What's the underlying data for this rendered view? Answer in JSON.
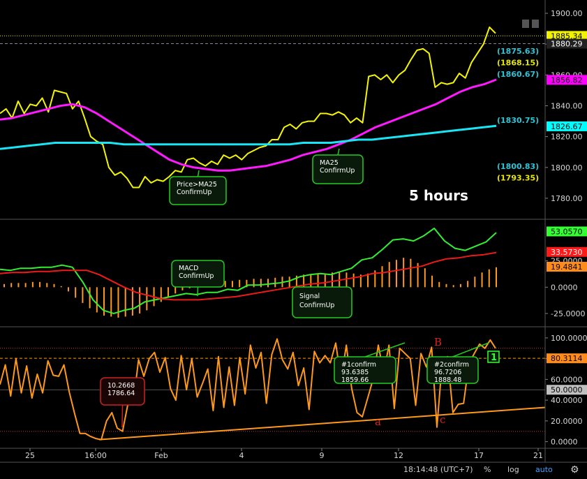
{
  "chart_data": [
    {
      "panel": "price",
      "type": "line",
      "annotation_label": "5 hours",
      "ylim": [
        1770,
        1905
      ],
      "y_ticks": [
        "1900.00",
        "1880.00",
        "1860.00",
        "1840.00",
        "1820.00",
        "1800.00",
        "1780.00"
      ],
      "price_tags": [
        {
          "text": "1885.34",
          "value": 1885.34,
          "bg": "#f2f200",
          "fg": "#000000"
        },
        {
          "text": "1880.29",
          "value": 1880.29,
          "bg": "#222222",
          "fg": "#ffffff"
        },
        {
          "text": "1856.82",
          "value": 1856.82,
          "bg": "#ff00ff",
          "fg": "#000000"
        },
        {
          "text": "1826.67",
          "value": 1826.67,
          "bg": "#00ffff",
          "fg": "#000000"
        }
      ],
      "level_labels": [
        {
          "text": "(1875.63)",
          "value": 1875.63,
          "color": "#2ec4d6"
        },
        {
          "text": "(1868.15)",
          "value": 1868.15,
          "color": "#e8e800"
        },
        {
          "text": "(1860.67)",
          "value": 1860.67,
          "color": "#2ec4d6"
        },
        {
          "text": "(1830.75)",
          "value": 1830.75,
          "color": "#2ec4d6"
        },
        {
          "text": "(1800.83)",
          "value": 1800.83,
          "color": "#2ec4d6"
        },
        {
          "text": "(1793.35)",
          "value": 1793.35,
          "color": "#e8e800"
        }
      ],
      "hlines": [
        {
          "value": 1885.34,
          "color": "#e8e800",
          "style": "dotted"
        },
        {
          "value": 1880.29,
          "color": "#888888",
          "style": "dashed"
        }
      ],
      "series": [
        {
          "color": "#f5f500",
          "values": [
            1835,
            1838,
            1832,
            1843,
            1835,
            1841,
            1840,
            1845,
            1836,
            1850,
            1849,
            1848,
            1838,
            1843,
            1832,
            1820,
            1817,
            1815,
            1800,
            1795,
            1797,
            1793,
            1787,
            1787,
            1794,
            1790,
            1792,
            1791,
            1794,
            1798,
            1797,
            1805,
            1806,
            1803,
            1801,
            1804,
            1802,
            1808,
            1806,
            1808,
            1805,
            1809,
            1811,
            1813,
            1814,
            1818,
            1818,
            1826,
            1828,
            1825,
            1829,
            1830,
            1830,
            1835,
            1835,
            1834,
            1836,
            1834,
            1829,
            1832,
            1829,
            1859,
            1860,
            1857,
            1860,
            1855,
            1860,
            1863,
            1870,
            1876,
            1877,
            1874,
            1852,
            1855,
            1854,
            1855,
            1861,
            1858,
            1868,
            1874,
            1880,
            1891,
            1887
          ]
        },
        {
          "color": "#ff19ff",
          "values": [
            1831,
            1832,
            1834,
            1836,
            1838,
            1840,
            1841,
            1839,
            1835,
            1830,
            1825,
            1820,
            1815,
            1810,
            1805,
            1802,
            1800,
            1799,
            1798,
            1798,
            1799,
            1800,
            1801,
            1803,
            1805,
            1808,
            1810,
            1812,
            1815,
            1818,
            1822,
            1826,
            1829,
            1832,
            1835,
            1838,
            1841,
            1845,
            1849,
            1852,
            1854,
            1857
          ]
        },
        {
          "color": "#19e6f5",
          "values": [
            1812,
            1813,
            1814,
            1815,
            1816,
            1816,
            1816,
            1816,
            1816,
            1815,
            1815,
            1815,
            1815,
            1815,
            1815,
            1815,
            1815,
            1815,
            1815,
            1815,
            1815,
            1815,
            1816,
            1816,
            1816,
            1817,
            1818,
            1818,
            1819,
            1820,
            1821,
            1822,
            1823,
            1824,
            1825,
            1826,
            1827
          ]
        }
      ],
      "callouts": [
        {
          "lines": [
            "Price>MA25",
            "ConfirmUp"
          ]
        },
        {
          "lines": [
            "MA25",
            "ConfirmUp"
          ]
        }
      ]
    },
    {
      "panel": "macd",
      "type": "line",
      "ylim": [
        -35,
        62
      ],
      "y_ticks": [
        "25.0000",
        "0.0000",
        "-25.0000"
      ],
      "price_tags": [
        {
          "text": "53.0570",
          "value": 53.057,
          "bg": "#33ff33",
          "fg": "#000000"
        },
        {
          "text": "33.5730",
          "value": 33.573,
          "bg": "#ff1a1a",
          "fg": "#ffffff"
        },
        {
          "text": "19.4841",
          "value": 19.4841,
          "bg": "#ff8c1a",
          "fg": "#000000"
        }
      ],
      "histogram": [
        3,
        4,
        4,
        4,
        5,
        5,
        4,
        3,
        1,
        -4,
        -10,
        -15,
        -20,
        -24,
        -27,
        -28,
        -29,
        -28,
        -27,
        -25,
        -22,
        -18,
        -14,
        -10,
        -6,
        -3,
        -1,
        1,
        4,
        5,
        6,
        6,
        6,
        7,
        7,
        8,
        8,
        8,
        9,
        10,
        10,
        11,
        12,
        12,
        13,
        12,
        14,
        14,
        14,
        13,
        12,
        13,
        16,
        20,
        24,
        26,
        28,
        27,
        23,
        18,
        11,
        5,
        3,
        2,
        3,
        6,
        10,
        14,
        17,
        19
      ],
      "series": [
        {
          "color": "#33ee33",
          "values": [
            17,
            16,
            18,
            18,
            19,
            19,
            21,
            19,
            5,
            -12,
            -22,
            -25,
            -22,
            -20,
            -14,
            -12,
            -10,
            -8,
            -6,
            -7,
            -5,
            -5,
            -2,
            -3,
            2,
            2,
            3,
            4,
            6,
            10,
            12,
            13,
            12,
            15,
            18,
            26,
            28,
            36,
            45,
            46,
            44,
            49,
            56,
            44,
            37,
            35,
            39,
            43,
            52
          ]
        },
        {
          "color": "#ee1a1a",
          "values": [
            13,
            14,
            14,
            15,
            15,
            16,
            16,
            16,
            12,
            6,
            0,
            -5,
            -8,
            -11,
            -12,
            -12,
            -12,
            -11,
            -10,
            -9,
            -7,
            -5,
            -3,
            -1,
            1,
            3,
            4,
            6,
            8,
            10,
            13,
            14,
            16,
            18,
            20,
            24,
            27,
            28,
            30,
            31,
            33
          ]
        }
      ],
      "callouts": [
        {
          "lines": [
            "MACD",
            "ConfirmUp"
          ]
        },
        {
          "lines": [
            "Signal",
            "ConfirmUp"
          ]
        }
      ]
    },
    {
      "panel": "oscillator",
      "type": "line",
      "ylim": [
        -5,
        108
      ],
      "y_ticks": [
        "100.0000",
        "80.0000",
        "60.0000",
        "40.0000",
        "20.0000",
        "0.0000"
      ],
      "price_tags": [
        {
          "text": "80.3114",
          "value": 80.3114,
          "bg": "#ff8c1a",
          "fg": "#000000"
        },
        {
          "text": "50.0000",
          "value": 50,
          "bg": "#c0c0c0",
          "fg": "#000000"
        }
      ],
      "hlines": [
        {
          "value": 90,
          "color": "#c0392b",
          "style": "dotted"
        },
        {
          "value": 80.3114,
          "color": "#ff9900",
          "style": "dashed"
        },
        {
          "value": 50,
          "color": "#555555",
          "style": "solid"
        },
        {
          "value": 10,
          "color": "#c0392b",
          "style": "dotted"
        }
      ],
      "trendline": {
        "start": 2,
        "end": 33,
        "color": "#ff9919"
      },
      "series": [
        {
          "color": "#ff9919",
          "values": [
            55,
            74,
            44,
            80,
            47,
            73,
            42,
            65,
            47,
            78,
            64,
            63,
            74,
            48,
            27,
            8,
            8,
            5,
            3,
            2,
            20,
            28,
            13,
            10,
            36,
            37,
            79,
            63,
            80,
            86,
            67,
            81,
            51,
            40,
            83,
            50,
            80,
            43,
            56,
            70,
            30,
            82,
            33,
            72,
            35,
            81,
            46,
            93,
            71,
            86,
            37,
            84,
            99,
            79,
            70,
            86,
            54,
            71,
            31,
            87,
            76,
            83,
            76,
            95,
            60,
            93,
            51,
            28,
            24,
            42,
            60,
            93,
            66,
            93,
            32,
            90,
            85,
            80,
            35,
            85,
            72,
            91,
            14,
            78,
            82,
            28,
            36,
            37,
            75,
            85,
            94,
            90,
            98,
            90
          ]
        }
      ],
      "markers": [
        {
          "text": "a",
          "color": "#e02020"
        },
        {
          "text": "B",
          "color": "#e02020"
        },
        {
          "text": "c",
          "color": "#e02020"
        }
      ],
      "badge": "1",
      "callouts": [
        {
          "lines": [
            "10.2668",
            "1786.64"
          ]
        },
        {
          "lines": [
            "#1confirm",
            "93.6385",
            "1859.66"
          ]
        },
        {
          "lines": [
            "#2confirm",
            "96.7206",
            "1888.48"
          ]
        }
      ]
    }
  ],
  "x_axis": {
    "ticks": [
      "25",
      "16:00",
      "Feb",
      "4",
      "9",
      "12",
      "17",
      "21"
    ]
  },
  "status_bar": {
    "time": "18:14:48 (UTC+7)",
    "percent": "%",
    "log": "log",
    "auto": "auto"
  }
}
